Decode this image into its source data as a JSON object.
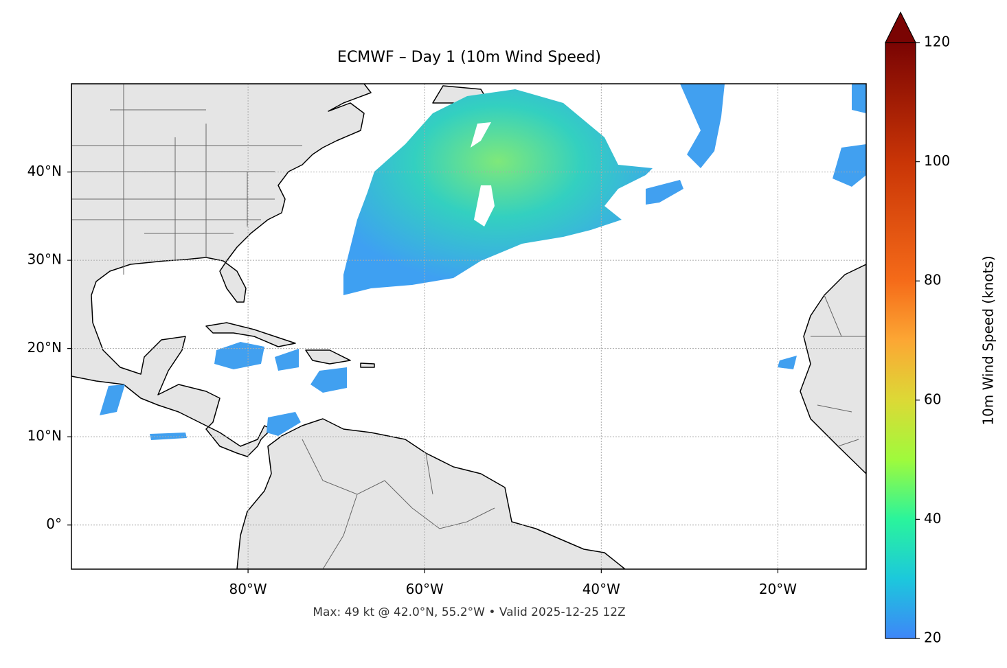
{
  "map": {
    "title": "ECMWF – Day 1 (10m Wind Speed)",
    "subtitle": "Max: 49 kt @ 42.0°N, 55.2°W • Valid 2025-12-25 12Z",
    "xlim": [
      -100,
      -10
    ],
    "ylim": [
      -5,
      50
    ],
    "xticks": [
      {
        "value": -80,
        "label": "80°W"
      },
      {
        "value": -60,
        "label": "60°W"
      },
      {
        "value": -40,
        "label": "40°W"
      },
      {
        "value": -20,
        "label": "20°W"
      }
    ],
    "yticks": [
      {
        "value": 0,
        "label": "0°"
      },
      {
        "value": 10,
        "label": "10°N"
      },
      {
        "value": 20,
        "label": "20°N"
      },
      {
        "value": 30,
        "label": "30°N"
      },
      {
        "value": 40,
        "label": "40°N"
      }
    ],
    "grid": true,
    "colorbar": {
      "label": "10m Wind Speed (knots)",
      "lim": [
        20,
        120
      ],
      "ticks": [
        20,
        40,
        60,
        80,
        100,
        120
      ]
    }
  }
}
